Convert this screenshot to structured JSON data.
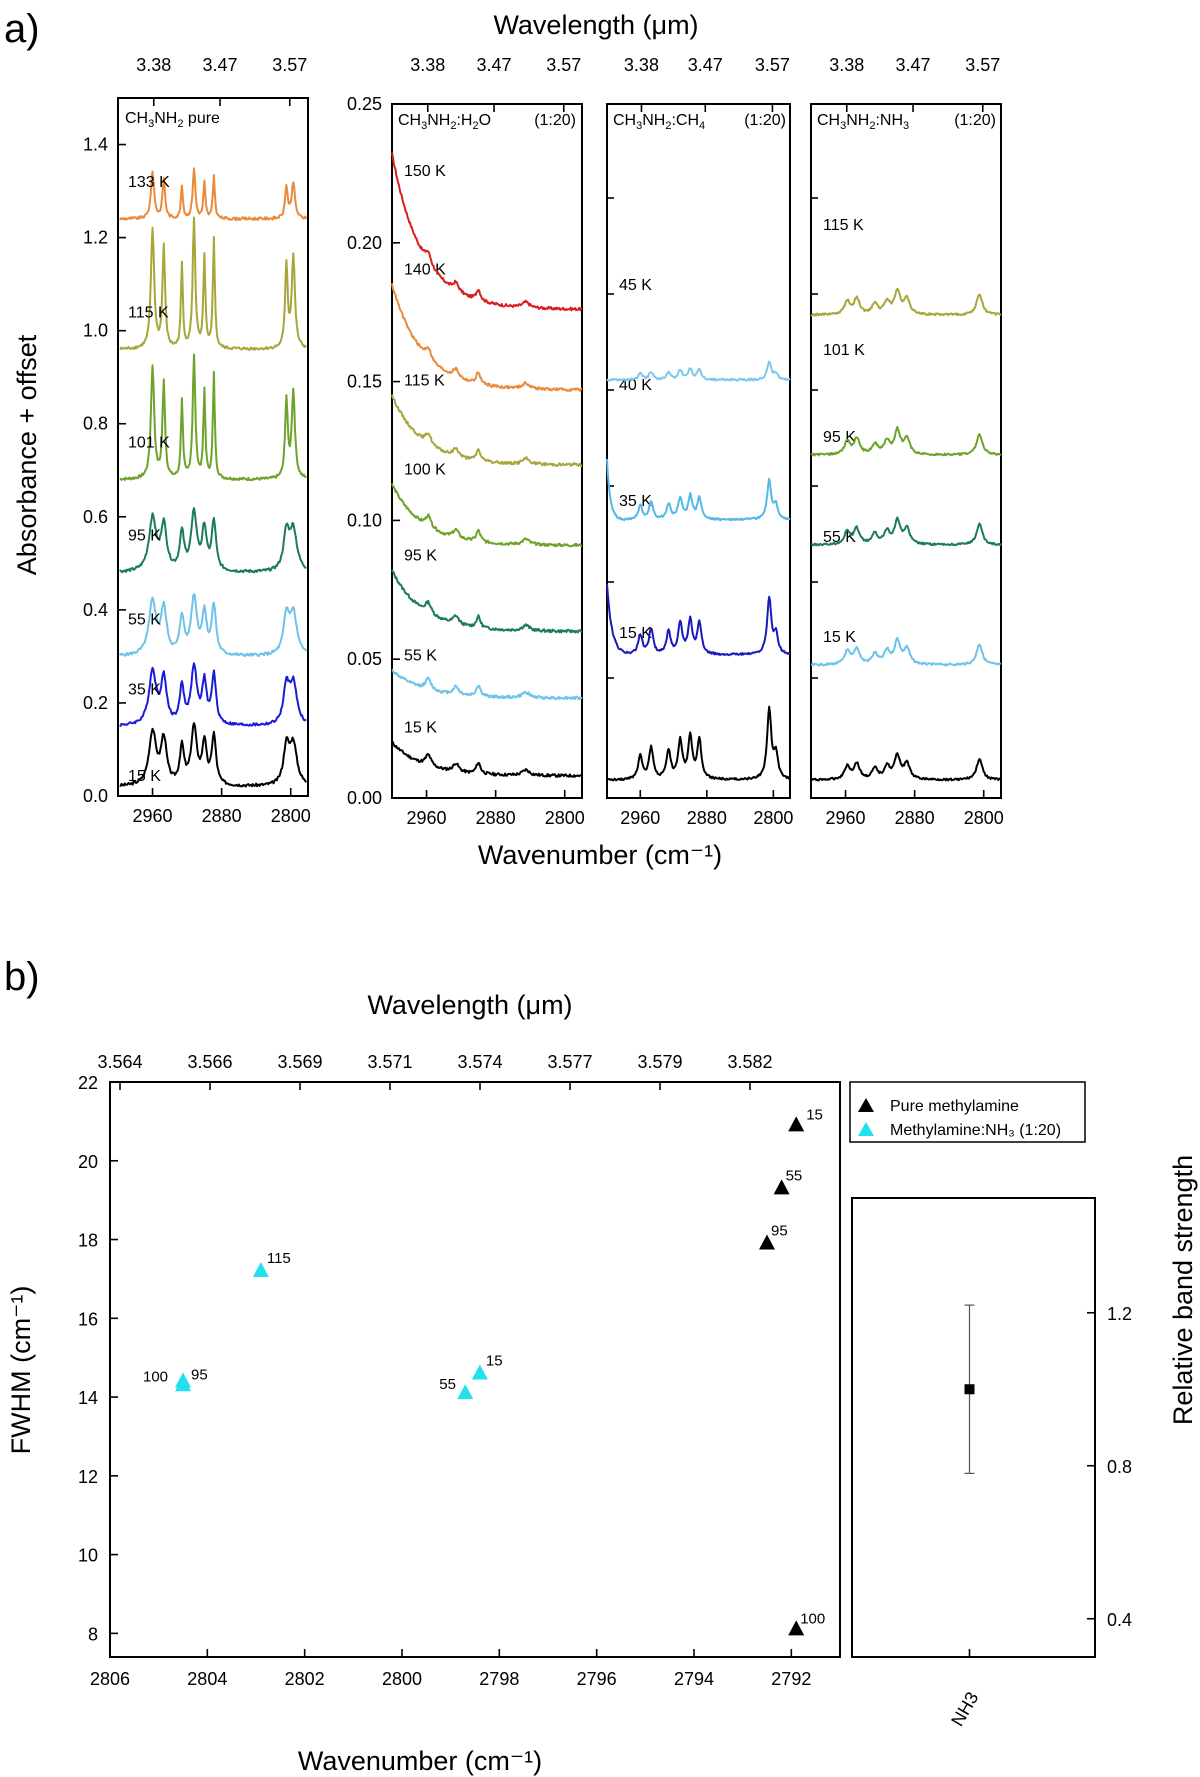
{
  "panel_a": {
    "letter": "a)",
    "top_axis_title": "Wavelength (μm)",
    "bottom_axis_title": "Wavenumber (cm⁻¹)",
    "y_axis_title": "Absorbance + offset",
    "top_tick_labels": [
      "3.38",
      "3.47",
      "3.57"
    ],
    "bottom_tick_labels": [
      "2960",
      "2880",
      "2800"
    ]
  },
  "panel_b": {
    "letter": "b)",
    "top_axis_title": "Wavelength (μm)",
    "bottom_axis_title": "Wavenumber (cm⁻¹)",
    "y_axis_title": "FWHM (cm⁻¹)",
    "right_axis_title": "Relative band strength",
    "top_tick_labels": [
      "3.564",
      "3.566",
      "3.569",
      "3.571",
      "3.574",
      "3.577",
      "3.579",
      "3.582"
    ],
    "legend": {
      "items": [
        {
          "label": "Pure methylamine",
          "color": "#000000"
        },
        {
          "label": "Methylamine:NH₃ (1:20)",
          "color": "#22e0ee"
        }
      ]
    },
    "inset_category": "NH3"
  },
  "chart_data": [
    {
      "type": "line",
      "title": "CH3NH2 pure",
      "xlabel": "Wavenumber (cm-1)",
      "ylabel": "Absorbance + offset",
      "xlim": [
        3000,
        2780
      ],
      "ylim": [
        0.0,
        1.5
      ],
      "yticks": [
        "0.0",
        "0.2",
        "0.4",
        "0.6",
        "0.8",
        "1.0",
        "1.2",
        "1.4"
      ],
      "peaks": [
        2960,
        2947,
        2926,
        2912,
        2900,
        2889,
        2805,
        2797
      ],
      "spectra": [
        {
          "name": "15 K",
          "color": "#000000",
          "baseline": 0.02,
          "amp": 0.8
        },
        {
          "name": "35 K",
          "color": "#1a1adb",
          "baseline": 0.15,
          "amp": 0.8
        },
        {
          "name": "55 K",
          "color": "#6ec3ea",
          "baseline": 0.3,
          "amp": 0.8
        },
        {
          "name": "95 K",
          "color": "#1d7a5c",
          "baseline": 0.48,
          "amp": 0.8
        },
        {
          "name": "101 K",
          "color": "#6ea32b",
          "baseline": 0.68,
          "amp": 1.7
        },
        {
          "name": "115 K",
          "color": "#a7a63a",
          "baseline": 0.96,
          "amp": 1.8
        },
        {
          "name": "133 K",
          "color": "#ea8a3a",
          "baseline": 1.24,
          "amp": 0.7
        }
      ]
    },
    {
      "type": "line",
      "title": "CH3NH2:H2O",
      "ratio": "(1:20)",
      "xlabel": "Wavenumber (cm-1)",
      "ylabel": "Absorbance + offset",
      "xlim": [
        3000,
        2780
      ],
      "ylim": [
        0.0,
        0.25
      ],
      "yticks": [
        "0.00",
        "0.05",
        "0.10",
        "0.15",
        "0.20",
        "0.25"
      ],
      "spectra": [
        {
          "name": "15 K",
          "color": "#000000",
          "baseline": 0.008,
          "start": 0.02
        },
        {
          "name": "55 K",
          "color": "#6ec3ea",
          "baseline": 0.036,
          "start": 0.046
        },
        {
          "name": "95 K",
          "color": "#1d7a5c",
          "baseline": 0.06,
          "start": 0.082
        },
        {
          "name": "100 K",
          "color": "#6ea32b",
          "baseline": 0.091,
          "start": 0.113
        },
        {
          "name": "115 K",
          "color": "#a7a63a",
          "baseline": 0.12,
          "start": 0.145
        },
        {
          "name": "140 K",
          "color": "#ea8a3a",
          "baseline": 0.147,
          "start": 0.185
        },
        {
          "name": "150 K",
          "color": "#d81f1f",
          "baseline": 0.176,
          "start": 0.232
        }
      ]
    },
    {
      "type": "line",
      "title": "CH3NH2:CH4",
      "ratio": "(1:20)",
      "xlabel": "Wavenumber (cm-1)",
      "ylabel": "Absorbance + offset",
      "xlim": [
        3000,
        2780
      ],
      "spectra": [
        {
          "name": "15 K",
          "color": "#000000"
        },
        {
          "name": "35 K",
          "color": "#1a1abb"
        },
        {
          "name": "40 K",
          "color": "#55b8e8"
        },
        {
          "name": "45 K",
          "color": "#7cc9ec"
        }
      ]
    },
    {
      "type": "line",
      "title": "CH3NH2:NH3",
      "ratio": "(1:20)",
      "xlabel": "Wavenumber (cm-1)",
      "ylabel": "Absorbance + offset",
      "xlim": [
        3000,
        2780
      ],
      "spectra": [
        {
          "name": "15 K",
          "color": "#000000"
        },
        {
          "name": "55 K",
          "color": "#6ec3ea"
        },
        {
          "name": "95 K",
          "color": "#1d7a5c"
        },
        {
          "name": "101 K",
          "color": "#6ea32b"
        },
        {
          "name": "115 K",
          "color": "#a7a63a"
        }
      ]
    },
    {
      "type": "scatter",
      "xlabel": "Wavenumber (cm-1)",
      "ylabel": "FWHM (cm-1)",
      "xlim": [
        2806,
        2791
      ],
      "ylim": [
        7.4,
        22
      ],
      "xticks": [
        "2806",
        "2804",
        "2802",
        "2800",
        "2798",
        "2796",
        "2794",
        "2792"
      ],
      "yticks": [
        "8",
        "10",
        "12",
        "14",
        "16",
        "18",
        "20",
        "22"
      ],
      "series": [
        {
          "name": "Pure methylamine",
          "color": "#000000",
          "points": [
            {
              "x": 2791.9,
              "y": 20.9,
              "label": "15"
            },
            {
              "x": 2792.2,
              "y": 19.3,
              "label": "55"
            },
            {
              "x": 2792.5,
              "y": 17.9,
              "label": "95"
            },
            {
              "x": 2791.9,
              "y": 8.1,
              "label": "100"
            }
          ]
        },
        {
          "name": "Methylamine:NH3 (1:20)",
          "color": "#22e0ee",
          "points": [
            {
              "x": 2798.4,
              "y": 14.6,
              "label": "15"
            },
            {
              "x": 2798.7,
              "y": 14.1,
              "label": "55"
            },
            {
              "x": 2804.5,
              "y": 14.4,
              "label": "95"
            },
            {
              "x": 2804.5,
              "y": 14.3,
              "label": "100"
            },
            {
              "x": 2802.9,
              "y": 17.2,
              "label": "115"
            }
          ]
        }
      ]
    },
    {
      "type": "scatter",
      "ylabel": "Relative band strength",
      "categories": [
        "NH3"
      ],
      "values": [
        1.0
      ],
      "error": [
        0.22
      ],
      "ylim": [
        0.3,
        1.5
      ],
      "yticks": [
        "0.4",
        "0.8",
        "1.2"
      ]
    }
  ]
}
